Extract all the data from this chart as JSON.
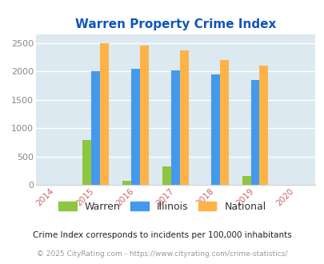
{
  "title": "Warren Property Crime Index",
  "years": [
    2015,
    2016,
    2017,
    2018,
    2019
  ],
  "warren": [
    790,
    70,
    325,
    0,
    160
  ],
  "illinois": [
    2000,
    2040,
    2010,
    1940,
    1850
  ],
  "national": [
    2500,
    2450,
    2360,
    2200,
    2100
  ],
  "warren_color": "#8dc63f",
  "illinois_color": "#4499ee",
  "national_color": "#ffb347",
  "bg_color": "#dce9f0",
  "title_color": "#1155bb",
  "xlim": [
    2013.5,
    2020.5
  ],
  "ylim": [
    0,
    2650
  ],
  "yticks": [
    0,
    500,
    1000,
    1500,
    2000,
    2500
  ],
  "bar_width": 0.22,
  "footnote1": "Crime Index corresponds to incidents per 100,000 inhabitants",
  "footnote2": "© 2025 CityRating.com - https://www.cityrating.com/crime-statistics/",
  "legend_labels": [
    "Warren",
    "Illinois",
    "National"
  ],
  "footnote1_color": "#222222",
  "footnote2_color": "#999999"
}
